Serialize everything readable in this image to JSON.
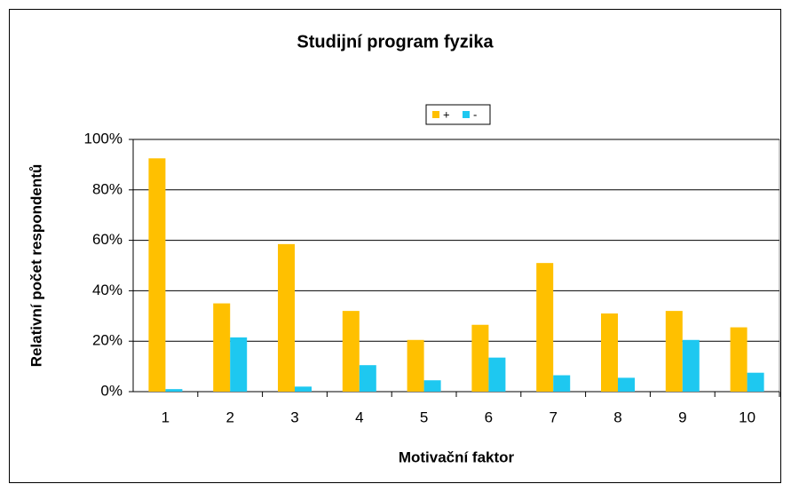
{
  "chart_data": {
    "type": "bar",
    "title": "Studijní program fyzika",
    "x_label": "Motivační faktor",
    "y_label": "Relativní počet respondentů",
    "categories": [
      "1",
      "2",
      "3",
      "4",
      "5",
      "6",
      "7",
      "8",
      "9",
      "10"
    ],
    "series": [
      {
        "name": "+",
        "color": "#ffc000",
        "values": [
          92.5,
          35,
          58.5,
          32,
          20.5,
          26.5,
          51,
          31,
          32,
          25.5
        ]
      },
      {
        "name": "-",
        "color": "#1ec8f0",
        "values": [
          1,
          21.5,
          2,
          10.5,
          4.5,
          13.5,
          6.5,
          5.5,
          20.5,
          7.5
        ]
      }
    ],
    "ylim": [
      0,
      100
    ],
    "yticks": [
      {
        "value": 0,
        "label": "0%"
      },
      {
        "value": 20,
        "label": "20%"
      },
      {
        "value": 40,
        "label": "40%"
      },
      {
        "value": 60,
        "label": "60%"
      },
      {
        "value": 80,
        "label": "80%"
      },
      {
        "value": 100,
        "label": "100%"
      }
    ],
    "grid": true,
    "legend": "top"
  }
}
